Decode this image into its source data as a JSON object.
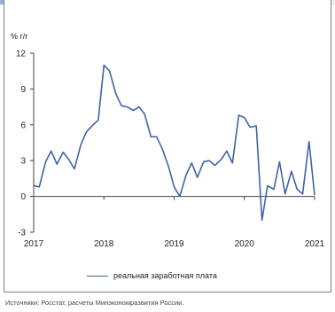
{
  "chart_data": {
    "type": "line",
    "unit_label": "% г/г",
    "xlim": [
      2017,
      2021
    ],
    "ylim": [
      -3,
      12
    ],
    "y_ticks": [
      -3,
      0,
      3,
      6,
      9,
      12
    ],
    "x_ticks": [
      2017,
      2018,
      2019,
      2020,
      2021
    ],
    "grid": false,
    "legend_position": "bottom",
    "series": [
      {
        "name": "реальная заработная плата",
        "color": "#3f64a6",
        "x": [
          2017.0,
          2017.08,
          2017.17,
          2017.25,
          2017.33,
          2017.42,
          2017.5,
          2017.58,
          2017.67,
          2017.75,
          2017.83,
          2017.92,
          2018.0,
          2018.08,
          2018.17,
          2018.25,
          2018.33,
          2018.42,
          2018.5,
          2018.58,
          2018.67,
          2018.75,
          2018.83,
          2018.92,
          2019.0,
          2019.08,
          2019.17,
          2019.25,
          2019.33,
          2019.42,
          2019.5,
          2019.58,
          2019.67,
          2019.75,
          2019.83,
          2019.92,
          2020.0,
          2020.08,
          2020.17,
          2020.25,
          2020.33,
          2020.42,
          2020.5,
          2020.58,
          2020.67,
          2020.75,
          2020.83,
          2020.92,
          2021.0
        ],
        "values": [
          0.9,
          0.8,
          2.9,
          3.8,
          2.7,
          3.7,
          3.1,
          2.3,
          4.3,
          5.4,
          5.9,
          6.4,
          11.0,
          10.5,
          8.6,
          7.6,
          7.5,
          7.2,
          7.5,
          6.9,
          5.0,
          5.0,
          4.0,
          2.5,
          0.8,
          0.0,
          1.8,
          2.8,
          1.6,
          2.9,
          3.0,
          2.6,
          3.1,
          3.8,
          2.8,
          6.8,
          6.6,
          5.8,
          5.9,
          -2.0,
          0.9,
          0.6,
          2.9,
          0.2,
          2.1,
          0.6,
          0.2,
          4.6,
          0.1
        ]
      }
    ]
  },
  "source_text": "Источники: Росстат, расчеты Минэкономразвития России."
}
